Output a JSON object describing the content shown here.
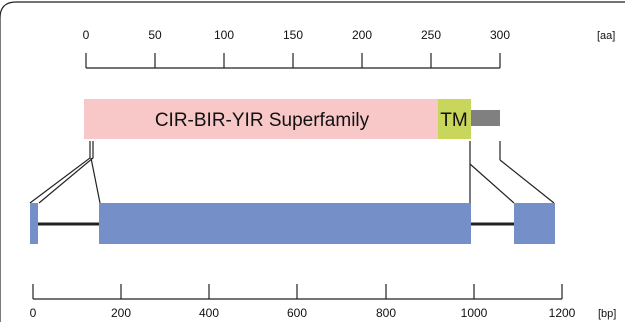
{
  "protein_axis": {
    "unit": "[aa]",
    "ticks": [
      "0",
      "50",
      "100",
      "150",
      "200",
      "250",
      "300"
    ]
  },
  "gene_axis": {
    "unit": "[bp]",
    "ticks": [
      "0",
      "200",
      "400",
      "600",
      "800",
      "1000",
      "1200"
    ]
  },
  "protein": {
    "domain_label": "CIR-BIR-YIR Superfamily",
    "tm_label": "TM",
    "colors": {
      "domain": "#f8c8c8",
      "tm": "#c8d65c",
      "tail": "#808080"
    }
  },
  "gene": {
    "exon_color": "#7590c8",
    "intron_color": "#222222"
  }
}
